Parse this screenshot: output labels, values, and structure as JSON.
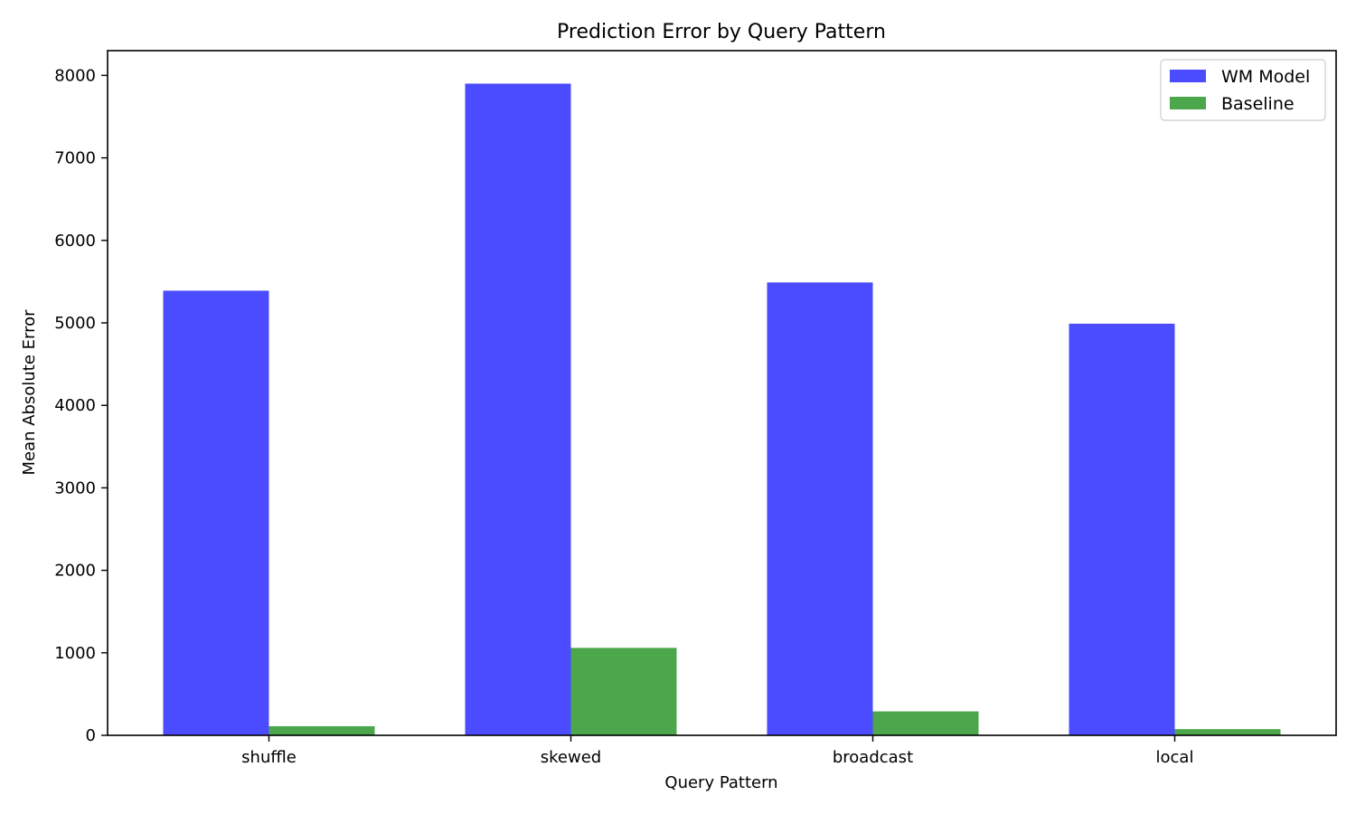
{
  "chart_data": {
    "type": "bar",
    "title": "Prediction Error by Query Pattern",
    "xlabel": "Query Pattern",
    "ylabel": "Mean Absolute Error",
    "categories": [
      "shuffle",
      "skewed",
      "broadcast",
      "local"
    ],
    "series": [
      {
        "name": "WM Model",
        "color": "#4b4bff",
        "values": [
          5390,
          7900,
          5490,
          4990
        ]
      },
      {
        "name": "Baseline",
        "color": "#4ca64c",
        "values": [
          110,
          1060,
          290,
          75
        ]
      }
    ],
    "ylim": [
      0,
      8300
    ],
    "yticks": [
      0,
      1000,
      2000,
      3000,
      4000,
      5000,
      6000,
      7000,
      8000
    ],
    "grid": false,
    "legend_position": "top-right"
  }
}
